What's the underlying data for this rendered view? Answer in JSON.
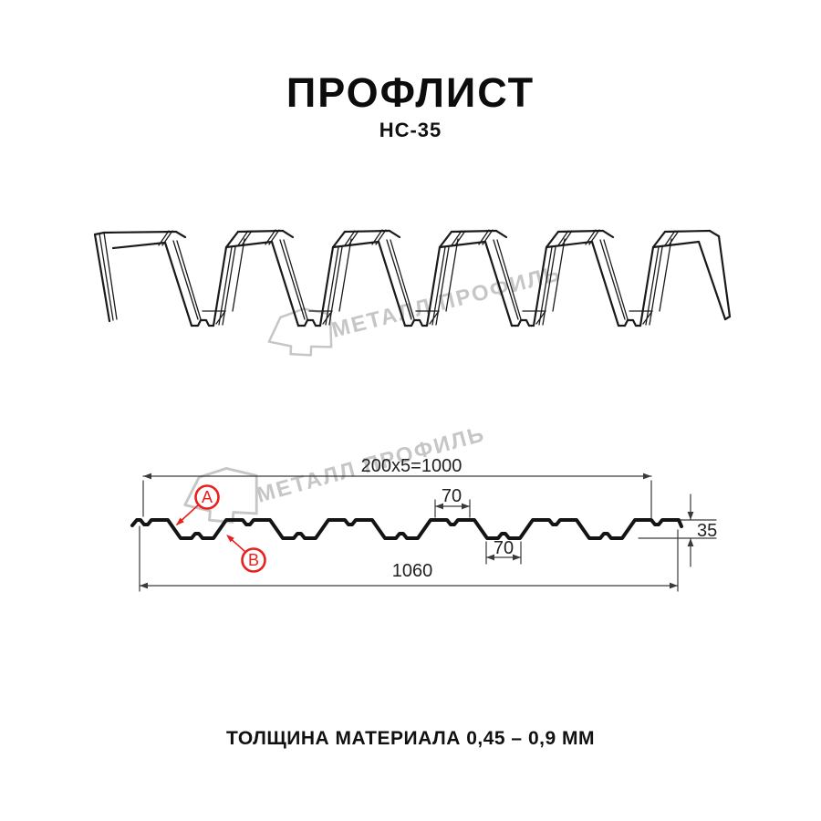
{
  "header": {
    "title": "ПРОФЛИСТ",
    "subtitle": "НС-35"
  },
  "footer": {
    "note": "ТОЛЩИНА МАТЕРИАЛА 0,45 – 0,9 ММ"
  },
  "watermark": {
    "brand": "МЕТАЛЛ ПРОФИЛЬ"
  },
  "diagram": {
    "dims": {
      "coverage": "200x5=1000",
      "crest_width": "70",
      "valley_width": "70",
      "height": "35",
      "total_width": "1060"
    },
    "markers": {
      "a": "A",
      "b": "B"
    },
    "colors": {
      "line": "#1a1a1a",
      "dim": "#3a3a3a",
      "profile": "#141414",
      "red": "#e9201e",
      "watermark": "#c6c6c6"
    }
  }
}
